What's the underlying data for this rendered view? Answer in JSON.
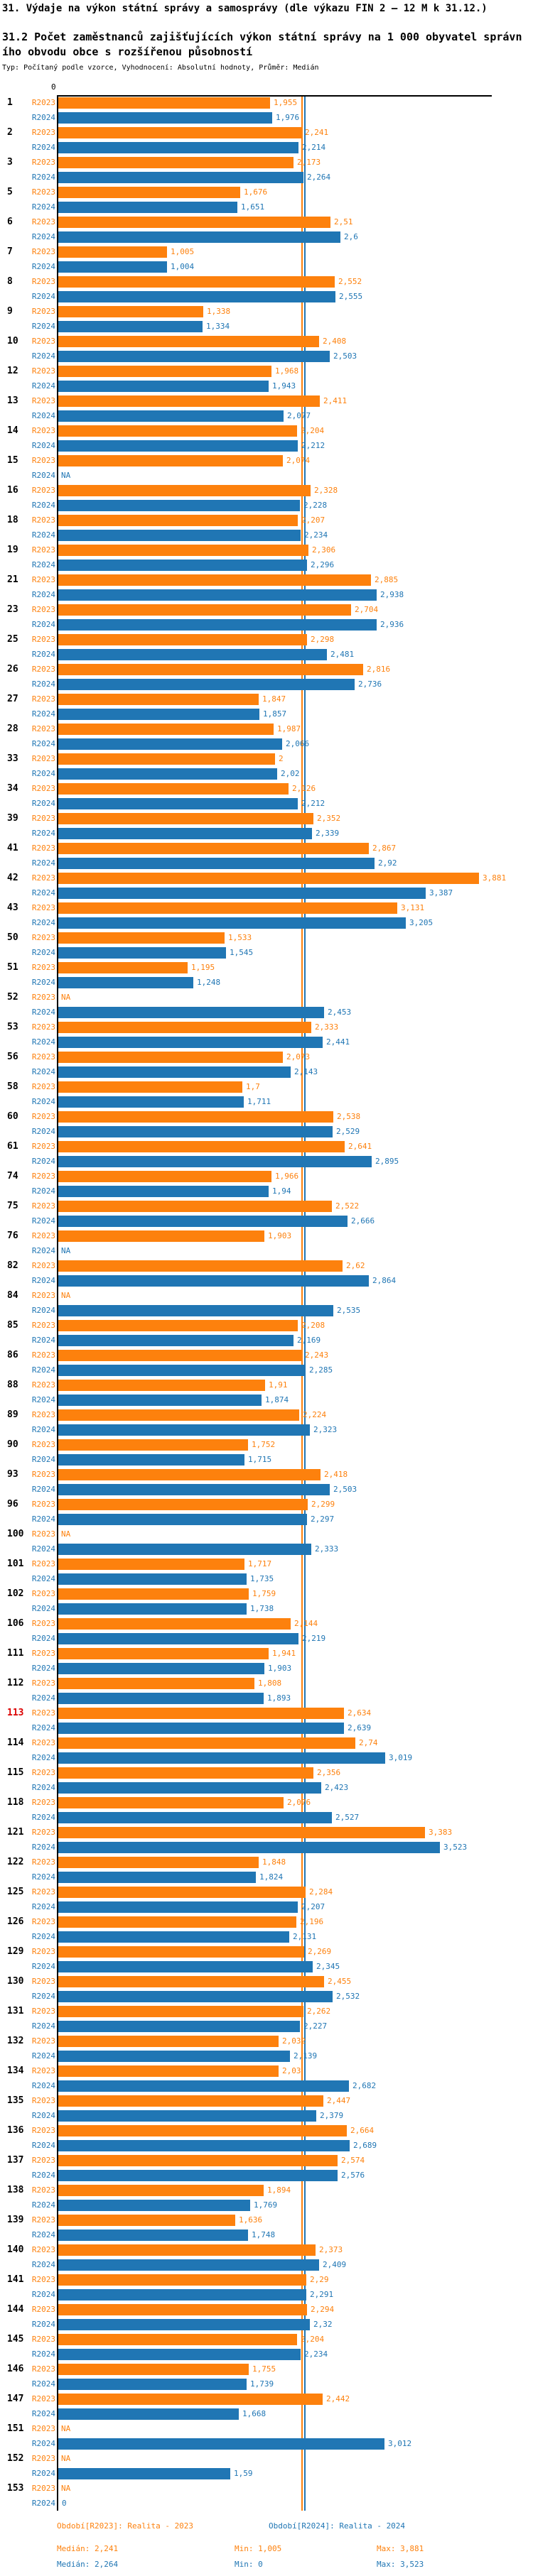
{
  "colors": {
    "orange": "#FD810D",
    "blue": "#2076B4",
    "red": "#DB0000",
    "axis": "#000000"
  },
  "header": {
    "title1": "31. Výdaje na výkon státní správy a samosprávy (dle výkazu FIN 2 – 12 M k 31.12.)",
    "title2": "31.2 Počet zaměstnanců zajišťujících výkon státní správy na 1 000 obyvatel správního obvodu obce s rozšířenou působností",
    "subtitle": "Typ: Počítaný podle vzorce, Vyhodnocení: Absolutní hodnoty, Průměr: Medián"
  },
  "chart_data": {
    "type": "bar",
    "orientation": "horizontal",
    "axis_zero_label": "0",
    "series_labels": [
      "R2023",
      "R2024"
    ],
    "median_2023": 2.241,
    "median_2024": 2.264,
    "xlim": [
      0,
      4
    ],
    "rows": [
      {
        "n": "1",
        "y2023": "1,955",
        "y2024": "1,976"
      },
      {
        "n": "2",
        "y2023": "2,241",
        "y2024": "2,214"
      },
      {
        "n": "3",
        "y2023": "2,173",
        "y2024": "2,264"
      },
      {
        "n": "5",
        "y2023": "1,676",
        "y2024": "1,651"
      },
      {
        "n": "6",
        "y2023": "2,51",
        "y2024": "2,6"
      },
      {
        "n": "7",
        "y2023": "1,005",
        "y2024": "1,004"
      },
      {
        "n": "8",
        "y2023": "2,552",
        "y2024": "2,555"
      },
      {
        "n": "9",
        "y2023": "1,338",
        "y2024": "1,334"
      },
      {
        "n": "10",
        "y2023": "2,408",
        "y2024": "2,503"
      },
      {
        "n": "12",
        "y2023": "1,968",
        "y2024": "1,943"
      },
      {
        "n": "13",
        "y2023": "2,411",
        "y2024": "2,077"
      },
      {
        "n": "14",
        "y2023": "2,204",
        "y2024": "2,212"
      },
      {
        "n": "15",
        "y2023": "2,074",
        "y2024": "NA"
      },
      {
        "n": "16",
        "y2023": "2,328",
        "y2024": "2,228"
      },
      {
        "n": "18",
        "y2023": "2,207",
        "y2024": "2,234"
      },
      {
        "n": "19",
        "y2023": "2,306",
        "y2024": "2,296"
      },
      {
        "n": "21",
        "y2023": "2,885",
        "y2024": "2,938"
      },
      {
        "n": "23",
        "y2023": "2,704",
        "y2024": "2,936"
      },
      {
        "n": "25",
        "y2023": "2,298",
        "y2024": "2,481"
      },
      {
        "n": "26",
        "y2023": "2,816",
        "y2024": "2,736"
      },
      {
        "n": "27",
        "y2023": "1,847",
        "y2024": "1,857"
      },
      {
        "n": "28",
        "y2023": "1,987",
        "y2024": "2,066"
      },
      {
        "n": "33",
        "y2023": "2",
        "y2024": "2,02"
      },
      {
        "n": "34",
        "y2023": "2,126",
        "y2024": "2,212"
      },
      {
        "n": "39",
        "y2023": "2,352",
        "y2024": "2,339"
      },
      {
        "n": "41",
        "y2023": "2,867",
        "y2024": "2,92"
      },
      {
        "n": "42",
        "y2023": "3,881",
        "y2024": "3,387"
      },
      {
        "n": "43",
        "y2023": "3,131",
        "y2024": "3,205"
      },
      {
        "n": "50",
        "y2023": "1,533",
        "y2024": "1,545"
      },
      {
        "n": "51",
        "y2023": "1,195",
        "y2024": "1,248"
      },
      {
        "n": "52",
        "y2023": "NA",
        "y2024": "2,453"
      },
      {
        "n": "53",
        "y2023": "2,333",
        "y2024": "2,441"
      },
      {
        "n": "56",
        "y2023": "2,073",
        "y2024": "2,143"
      },
      {
        "n": "58",
        "y2023": "1,7",
        "y2024": "1,711"
      },
      {
        "n": "60",
        "y2023": "2,538",
        "y2024": "2,529"
      },
      {
        "n": "61",
        "y2023": "2,641",
        "y2024": "2,895"
      },
      {
        "n": "74",
        "y2023": "1,966",
        "y2024": "1,94"
      },
      {
        "n": "75",
        "y2023": "2,522",
        "y2024": "2,666"
      },
      {
        "n": "76",
        "y2023": "1,903",
        "y2024": "NA"
      },
      {
        "n": "82",
        "y2023": "2,62",
        "y2024": "2,864"
      },
      {
        "n": "84",
        "y2023": "NA",
        "y2024": "2,535"
      },
      {
        "n": "85",
        "y2023": "2,208",
        "y2024": "2,169"
      },
      {
        "n": "86",
        "y2023": "2,243",
        "y2024": "2,285"
      },
      {
        "n": "88",
        "y2023": "1,91",
        "y2024": "1,874"
      },
      {
        "n": "89",
        "y2023": "2,224",
        "y2024": "2,323"
      },
      {
        "n": "90",
        "y2023": "1,752",
        "y2024": "1,715"
      },
      {
        "n": "93",
        "y2023": "2,418",
        "y2024": "2,503"
      },
      {
        "n": "96",
        "y2023": "2,299",
        "y2024": "2,297"
      },
      {
        "n": "100",
        "y2023": "NA",
        "y2024": "2,333"
      },
      {
        "n": "101",
        "y2023": "1,717",
        "y2024": "1,735"
      },
      {
        "n": "102",
        "y2023": "1,759",
        "y2024": "1,738"
      },
      {
        "n": "106",
        "y2023": "2,144",
        "y2024": "2,219"
      },
      {
        "n": "111",
        "y2023": "1,941",
        "y2024": "1,903"
      },
      {
        "n": "112",
        "y2023": "1,808",
        "y2024": "1,893"
      },
      {
        "n": "113",
        "red": true,
        "y2023": "2,634",
        "y2024": "2,639"
      },
      {
        "n": "114",
        "y2023": "2,74",
        "y2024": "3,019"
      },
      {
        "n": "115",
        "y2023": "2,356",
        "y2024": "2,423"
      },
      {
        "n": "118",
        "y2023": "2,076",
        "y2024": "2,527"
      },
      {
        "n": "121",
        "y2023": "3,383",
        "y2024": "3,523"
      },
      {
        "n": "122",
        "y2023": "1,848",
        "y2024": "1,824"
      },
      {
        "n": "125",
        "y2023": "2,284",
        "y2024": "2,207"
      },
      {
        "n": "126",
        "y2023": "2,196",
        "y2024": "2,131"
      },
      {
        "n": "129",
        "y2023": "2,269",
        "y2024": "2,345"
      },
      {
        "n": "130",
        "y2023": "2,455",
        "y2024": "2,532"
      },
      {
        "n": "131",
        "y2023": "2,262",
        "y2024": "2,227"
      },
      {
        "n": "132",
        "y2023": "2,032",
        "y2024": "2,139"
      },
      {
        "n": "134",
        "y2023": "2,03",
        "y2024": "2,682"
      },
      {
        "n": "135",
        "y2023": "2,447",
        "y2024": "2,379"
      },
      {
        "n": "136",
        "y2023": "2,664",
        "y2024": "2,689"
      },
      {
        "n": "137",
        "y2023": "2,574",
        "y2024": "2,576"
      },
      {
        "n": "138",
        "y2023": "1,894",
        "y2024": "1,769"
      },
      {
        "n": "139",
        "y2023": "1,636",
        "y2024": "1,748"
      },
      {
        "n": "140",
        "y2023": "2,373",
        "y2024": "2,409"
      },
      {
        "n": "141",
        "y2023": "2,29",
        "y2024": "2,291"
      },
      {
        "n": "144",
        "y2023": "2,294",
        "y2024": "2,32"
      },
      {
        "n": "145",
        "y2023": "2,204",
        "y2024": "2,234"
      },
      {
        "n": "146",
        "y2023": "1,755",
        "y2024": "1,739"
      },
      {
        "n": "147",
        "y2023": "2,442",
        "y2024": "1,668"
      },
      {
        "n": "151",
        "y2023": "NA",
        "y2024": "3,012"
      },
      {
        "n": "152",
        "y2023": "NA",
        "y2024": "1,59"
      },
      {
        "n": "153",
        "y2023": "NA",
        "y2024": "0"
      }
    ]
  },
  "footer": {
    "legend_2023": "Období[R2023]: Realita - 2023",
    "legend_2024": "Období[R2024]: Realita - 2024",
    "stats_2023": {
      "median": "Medián: 2,241",
      "min": "Min: 1,005",
      "max": "Max: 3,881"
    },
    "stats_2024": {
      "median": "Medián: 2,264",
      "min": "Min: 0",
      "max": "Max: 3,523"
    }
  }
}
